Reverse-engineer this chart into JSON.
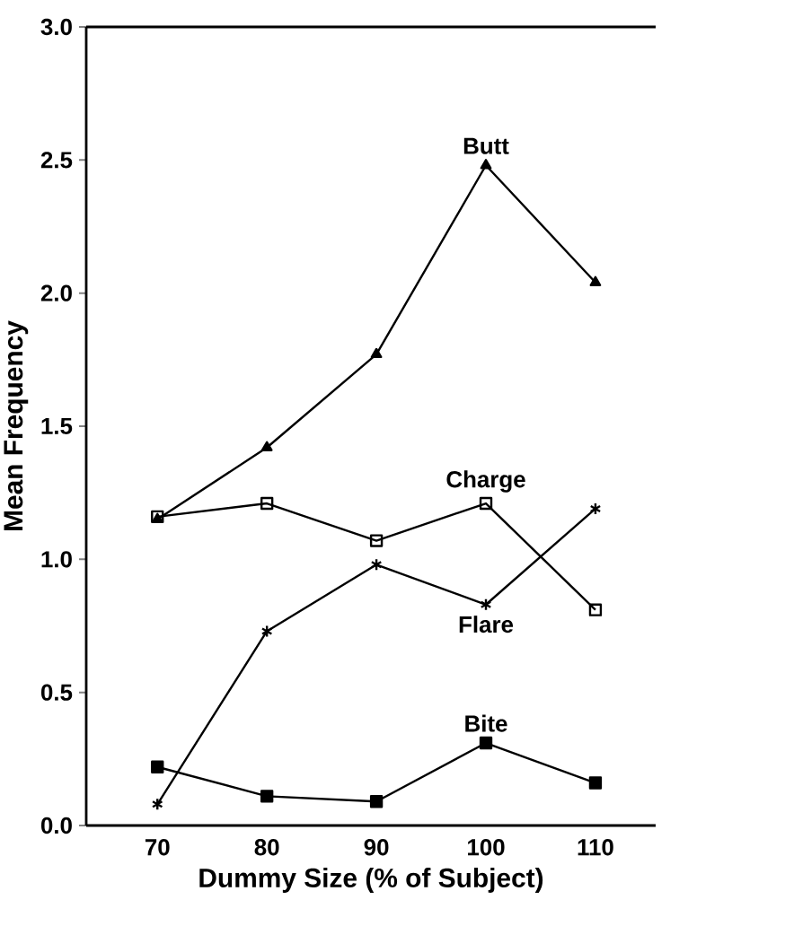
{
  "chart_data": {
    "type": "line",
    "xlabel": "Dummy Size (% of Subject)",
    "ylabel": "Mean Frequency",
    "x": [
      70,
      80,
      90,
      100,
      110
    ],
    "series": [
      {
        "name": "Butt",
        "color": "#000000",
        "marker": "triangle",
        "values": [
          1.15,
          1.42,
          1.77,
          2.48,
          2.04
        ]
      },
      {
        "name": "Charge",
        "color": "#000000",
        "marker": "square",
        "values": [
          1.16,
          1.21,
          1.07,
          1.21,
          0.81
        ]
      },
      {
        "name": "Flare",
        "color": "#000000",
        "marker": "cross",
        "values": [
          0.08,
          0.73,
          0.98,
          0.83,
          1.19
        ]
      },
      {
        "name": "Bite",
        "color": "#000000",
        "marker": "square",
        "values": [
          0.22,
          0.11,
          0.09,
          0.31,
          0.16
        ]
      }
    ],
    "xlim": [
      63.5,
      115.5
    ],
    "ylim": [
      0,
      3
    ],
    "xticks": [
      70,
      80,
      90,
      100,
      110
    ],
    "yticks": [
      {
        "value": 0,
        "label": "0.0"
      },
      {
        "value": 0.5,
        "label": "0.5"
      },
      {
        "value": 1,
        "label": "1.0"
      },
      {
        "value": 1.5,
        "label": "1.5"
      },
      {
        "value": 2,
        "label": "2.0"
      },
      {
        "value": 2.5,
        "label": "2.5"
      },
      {
        "value": 3,
        "label": "3.0"
      }
    ],
    "grid": false,
    "line_style": "solid"
  }
}
